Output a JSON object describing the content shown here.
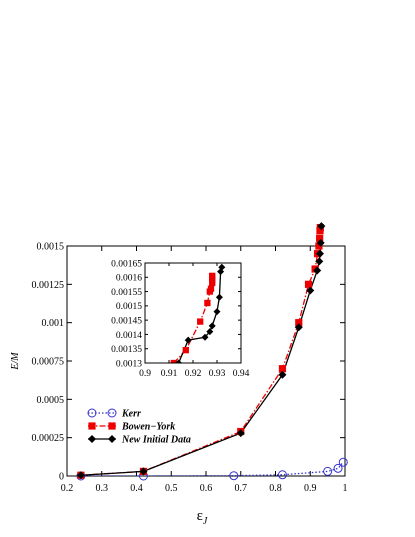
{
  "chart_data": [
    {
      "type": "line",
      "xlabel": "ε",
      "xlabel_sub": "J",
      "ylabel": "E/M",
      "xlim": [
        0.2,
        1.0
      ],
      "ylim": [
        0,
        0.0015
      ],
      "xticks": [
        0.2,
        0.3,
        0.4,
        0.5,
        0.6,
        0.7,
        0.8,
        0.9,
        1.0
      ],
      "xtick_labels": [
        "0.2",
        "0.3",
        "0.4",
        "0.5",
        "0.6",
        "0.7",
        "0.8",
        "0.9",
        "1"
      ],
      "yticks": [
        0,
        0.00025,
        0.0005,
        0.00075,
        0.001,
        0.00125,
        0.0015
      ],
      "ytick_labels": [
        "0",
        "0.00025",
        "0.0005",
        "0.00075",
        "0.001",
        "0.00125",
        "0.0015"
      ],
      "legend_position": "bottom-left",
      "series": [
        {
          "name": "Kerr",
          "color": "#3333cc",
          "line": "dotted",
          "marker": "open-circle",
          "x": [
            0.24,
            0.42,
            0.68,
            0.82,
            0.95,
            0.98,
            0.995
          ],
          "y": [
            0.0,
            0.0,
            2e-06,
            8e-06,
            3e-05,
            5e-05,
            9e-05
          ]
        },
        {
          "name": "Bowen−York",
          "color": "#ee0000",
          "line": "dashdot",
          "marker": "filled-square",
          "x": [
            0.24,
            0.42,
            0.7,
            0.82,
            0.867,
            0.895,
            0.914,
            0.921,
            0.925,
            0.927,
            0.928,
            0.929
          ],
          "y": [
            5e-06,
            3e-05,
            0.00029,
            0.0007,
            0.001,
            0.00125,
            0.00135,
            0.00145,
            0.0015,
            0.00155,
            0.0016,
            0.00162
          ]
        },
        {
          "name": "New Initial Data",
          "color": "#000000",
          "line": "solid",
          "marker": "filled-diamond",
          "x": [
            0.24,
            0.42,
            0.7,
            0.82,
            0.867,
            0.9,
            0.92,
            0.926,
            0.928,
            0.93,
            0.932
          ],
          "y": [
            5e-06,
            3e-05,
            0.00028,
            0.00066,
            0.00097,
            0.00121,
            0.00134,
            0.0014,
            0.00145,
            0.00152,
            0.00163
          ]
        }
      ]
    },
    {
      "type": "line",
      "role": "inset",
      "xlim": [
        0.9,
        0.94
      ],
      "ylim": [
        0.0013,
        0.00165
      ],
      "xticks": [
        0.9,
        0.91,
        0.92,
        0.93,
        0.94
      ],
      "xtick_labels": [
        "0.9",
        "0.91",
        "0.92",
        "0.93",
        "0.94"
      ],
      "yticks": [
        0.0013,
        0.00135,
        0.0014,
        0.00145,
        0.0015,
        0.00155,
        0.0016,
        0.00165
      ],
      "ytick_labels": [
        "0.0013",
        "0.00135",
        "0.0014",
        "0.00145",
        "0.0015",
        "0.00155",
        "0.0016",
        "0.00165"
      ],
      "series": [
        {
          "name": "Bowen−York",
          "color": "#ee0000",
          "line": "dashdot",
          "marker": "filled-square",
          "x": [
            0.912,
            0.917,
            0.923,
            0.926,
            0.927,
            0.9275,
            0.928,
            0.928,
            0.928,
            0.928
          ],
          "y": [
            0.0013,
            0.001345,
            0.001445,
            0.00151,
            0.00155,
            0.00156,
            0.00158,
            0.00159,
            0.0016,
            0.001605
          ]
        },
        {
          "name": "New Initial Data",
          "color": "#000000",
          "line": "solid",
          "marker": "filled-diamond",
          "x": [
            0.914,
            0.918,
            0.925,
            0.927,
            0.928,
            0.93,
            0.931,
            0.9315,
            0.932
          ],
          "y": [
            0.0013,
            0.00138,
            0.00139,
            0.00141,
            0.00143,
            0.00148,
            0.00153,
            0.00162,
            0.001635
          ]
        }
      ]
    }
  ]
}
